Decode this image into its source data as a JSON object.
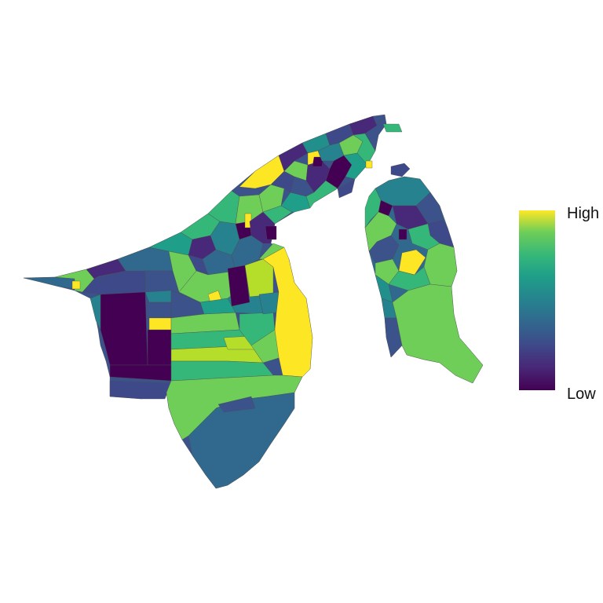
{
  "map": {
    "type": "choropleth",
    "color_scale": {
      "name": "viridis",
      "stops": [
        "#440154",
        "#3b528b",
        "#21908c",
        "#5dc863",
        "#fde725"
      ]
    },
    "legend": {
      "high_label": "High",
      "low_label": "Low",
      "placement": "right"
    }
  }
}
